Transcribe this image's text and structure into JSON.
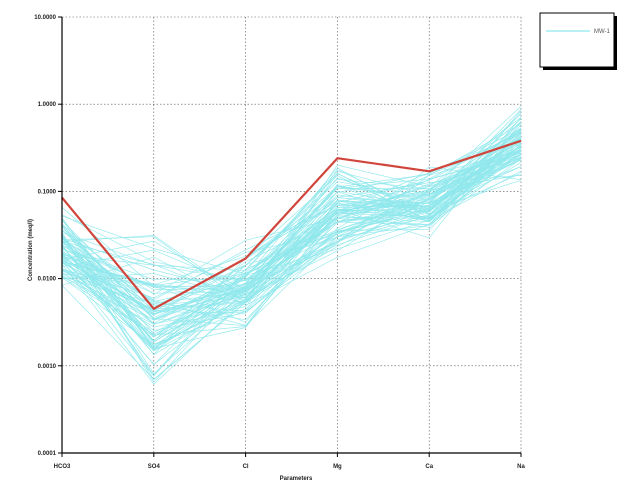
{
  "chart_data": {
    "type": "line",
    "title": "",
    "xlabel": "Parameters",
    "ylabel": "Concentration (meq/l)",
    "yscale": "log",
    "ylim": [
      0.0001,
      10
    ],
    "yticks": [
      {
        "value": 0.0001,
        "label": "0.0001"
      },
      {
        "value": 0.001,
        "label": "0.0010"
      },
      {
        "value": 0.01,
        "label": "0.0100"
      },
      {
        "value": 0.1,
        "label": "0.1000"
      },
      {
        "value": 1,
        "label": "1.0000"
      },
      {
        "value": 10,
        "label": "10.0000"
      }
    ],
    "categories": [
      "HCO3",
      "SO4",
      "Cl",
      "Mg",
      "Ca",
      "Na"
    ],
    "grid": true,
    "legend_position": "top-right",
    "colors": {
      "samples": "#8fe8ec",
      "highlight": "#d0453c",
      "axis": "#000000",
      "grid": "#555555"
    },
    "highlight_series": {
      "name": "",
      "values": [
        0.085,
        0.0045,
        0.017,
        0.24,
        0.17,
        0.38
      ]
    },
    "legend": [
      {
        "label": "MW-1",
        "color": "#8fe8ec"
      }
    ],
    "sample_envelope": {
      "HCO3": [
        0.005,
        0.09
      ],
      "SO4": [
        0.0003,
        0.06
      ],
      "Cl": [
        0.0015,
        0.04
      ],
      "Mg": [
        0.012,
        0.3
      ],
      "Ca": [
        0.025,
        0.22
      ],
      "Na": [
        0.1,
        1.3
      ]
    },
    "sample_line_count": 90
  }
}
